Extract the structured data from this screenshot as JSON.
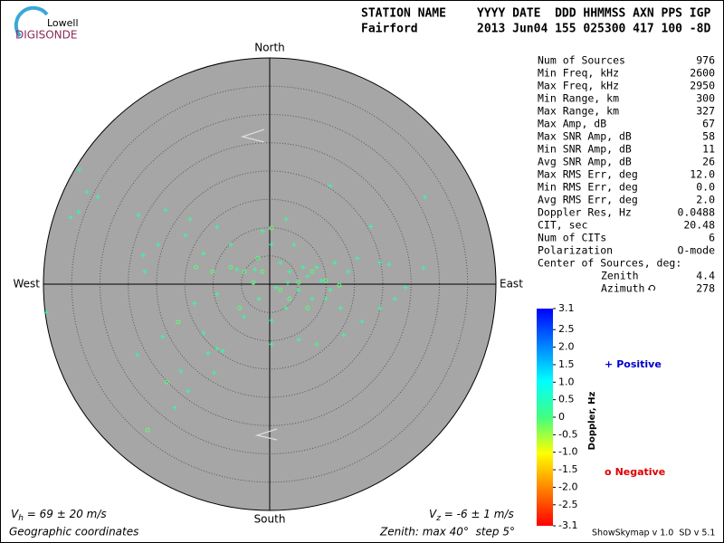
{
  "logo": {
    "top": "Lowell",
    "bottom": "DIGISONDE"
  },
  "header": {
    "labels": [
      "STATION NAME",
      "YYYY DATE  DDD HHMMSS AXN PPS IGP"
    ],
    "values": [
      "Fairford",
      "2013 Jun04 155 025300 417 100 -8D"
    ]
  },
  "stats": [
    [
      "Num of Sources",
      "976"
    ],
    [
      "Min Freq, kHz",
      "2600"
    ],
    [
      "Max Freq, kHz",
      "2950"
    ],
    [
      "Min Range, km",
      "300"
    ],
    [
      "Max Range, km",
      "327"
    ],
    [
      "Max Amp, dB",
      "67"
    ],
    [
      "Max SNR Amp, dB",
      "58"
    ],
    [
      "Min SNR Amp, dB",
      "11"
    ],
    [
      "Avg SNR Amp, dB",
      "26"
    ],
    [
      "Max RMS Err, deg",
      "12.0"
    ],
    [
      "Min RMS Err, deg",
      "0.0"
    ],
    [
      "Avg RMS Err, deg",
      "2.0"
    ],
    [
      "Doppler Res, Hz",
      "0.0488"
    ],
    [
      "CIT, sec",
      "20.48"
    ],
    [
      "Num of CITs",
      "6"
    ],
    [
      "Polarization",
      "O-mode"
    ]
  ],
  "center": {
    "title": "Center of Sources, deg:",
    "rows": [
      [
        "Zenith",
        "4.4"
      ],
      [
        "Azimuth",
        "278"
      ]
    ]
  },
  "velocity": {
    "h": {
      "symbol": "V",
      "sub": "h",
      "text": " = 69 ± 20 m/s"
    },
    "z": {
      "symbol": "V",
      "sub": "z",
      "text": " = -6 ± 1 m/s"
    }
  },
  "footer": {
    "coords": "Geographic coordinates",
    "zenith": "Zenith: max 40°  step 5°",
    "version": "ShowSkymap v 1.0  SD v 5.1"
  },
  "legend": {
    "positive": {
      "symbol": "+",
      "text": "Positive",
      "color": "#0000cc"
    },
    "negative": {
      "symbol": "o",
      "text": "Negative",
      "color": "#dd0000"
    }
  },
  "chart_data": {
    "type": "skymap",
    "directions": {
      "north": "North",
      "south": "South",
      "east": "East",
      "west": "West"
    },
    "zenith_max": 40,
    "zenith_step": 5,
    "colorbar": {
      "label": "Doppler, Hz",
      "lim": [
        -3.1,
        3.1
      ],
      "ticks": [
        3.1,
        2.5,
        {
          "value": 2,
          "label": "2.0"
        },
        1.5,
        {
          "value": 1,
          "label": "1.0"
        },
        0.5,
        0,
        -0.5,
        {
          "value": -1,
          "label": "-1.0"
        },
        -1.5,
        {
          "value": -2,
          "label": "-2.0"
        },
        -2.5,
        -3.1
      ],
      "colormap": [
        "#ff0000",
        "#ff8000",
        "#ffff00",
        "#40ff80",
        "#00ffff",
        "#0080ff",
        "#0000ff"
      ]
    },
    "positive": {
      "east": [
        -33.6,
        -32.3,
        -30.4,
        -35.2,
        -33.8,
        -23.2,
        -18.4,
        -14.1,
        -9.3,
        2.9,
        10.7,
        27.5,
        17.9,
        27.2,
        24.0,
        22.1,
        19.5,
        16.3,
        13.1,
        8.3,
        5.1,
        0.3,
        0.3,
        -4.5,
        -9.3,
        -10.9,
        -18.9,
        -23.4,
        -15.7,
        -14.4,
        -16.8,
        -9.8,
        -8.3,
        -11.7,
        -13.3,
        -9.3,
        -5.8,
        -2.6,
        1.9,
        3.5,
        6.7,
        9.1,
        10.7,
        7.5,
        5.1,
        3.2,
        1.1,
        5.9,
        8.3,
        11.5,
        13.9,
        15.5,
        19.5,
        21.1,
        9.9,
        12.5,
        2.9,
        -1.9,
        -39.5,
        -22.1,
        -22.4,
        -19.7,
        -14.9,
        -11.7,
        -6.9,
        -1.3,
        0.3,
        4.3
      ],
      "north": [
        20.2,
        16.3,
        15.4,
        11.8,
        12.8,
        12.2,
        13.1,
        11.5,
        10.1,
        11.5,
        17.4,
        15.4,
        10.2,
        2.9,
        -0.6,
        -2.6,
        -4.2,
        -6.6,
        -9.0,
        -10.6,
        -9.8,
        -10.6,
        -6.4,
        -5.8,
        -11.4,
        -12.2,
        -9.3,
        -12.5,
        -15.4,
        -18.9,
        -21.8,
        -15.7,
        -11.8,
        -8.6,
        -3.4,
        -1.8,
        2.6,
        2.6,
        3.8,
        2.2,
        1.4,
        0.6,
        -1.0,
        -2.6,
        -1.0,
        0.3,
        -0.6,
        3.0,
        3.0,
        3.8,
        2.2,
        4.6,
        3.8,
        3.5,
        -2.6,
        -4.2,
        -4.2,
        -2.6,
        -5.0,
        2.2,
        5.1,
        7.0,
        8.6,
        5.4,
        7.0,
        9.4,
        7.0,
        7.0
      ],
      "doppler": [
        0.4,
        0.3,
        0.4,
        0.3,
        0.4,
        0.3,
        0.3,
        0.2,
        0.3,
        0.2,
        0.3,
        0.4,
        0.3,
        0.3,
        0.2,
        0.3,
        0.2,
        0.3,
        0.2,
        0.2,
        0.3,
        0.2,
        0.2,
        0.3,
        0.3,
        0.2,
        0.3,
        0.4,
        0.3,
        0.3,
        0.3,
        0.2,
        0.3,
        0.3,
        0.2,
        0.2,
        0.2,
        0.2,
        0.2,
        0.2,
        0.2,
        0.3,
        0.2,
        0.2,
        0.2,
        0.2,
        0.2,
        0.3,
        0.2,
        0.2,
        0.3,
        0.3,
        0.3,
        0.3,
        0.2,
        0.2,
        0.2,
        0.2,
        0.4,
        0.3,
        0.3,
        0.3,
        0.3,
        0.2,
        0.2,
        0.2,
        0.2,
        0.2
      ]
    },
    "negative": {
      "east": [
        -21.6,
        -18.2,
        -16.2,
        -13.0,
        -10.1,
        -5.3,
        -1.3,
        1.9,
        5.1,
        7.5,
        9.9,
        3.5,
        0.3,
        -2.9,
        12.3,
        6.7,
        -6.9,
        -4.5,
        -2.1
      ],
      "north": [
        -25.8,
        -17.3,
        -6.7,
        3.0,
        2.2,
        -4.2,
        2.2,
        -1.0,
        0.3,
        2.2,
        0.6,
        -2.6,
        9.9,
        0.3,
        -0.2,
        -4.2,
        3.0,
        2.2,
        4.6
      ],
      "doppler": [
        -0.2,
        -0.1,
        -0.2,
        -0.1,
        -0.1,
        -0.1,
        -0.1,
        -0.1,
        -0.1,
        -0.1,
        -0.1,
        -0.1,
        -0.2,
        -0.1,
        -0.1,
        -0.1,
        -0.1,
        -0.1,
        -0.1
      ]
    }
  }
}
